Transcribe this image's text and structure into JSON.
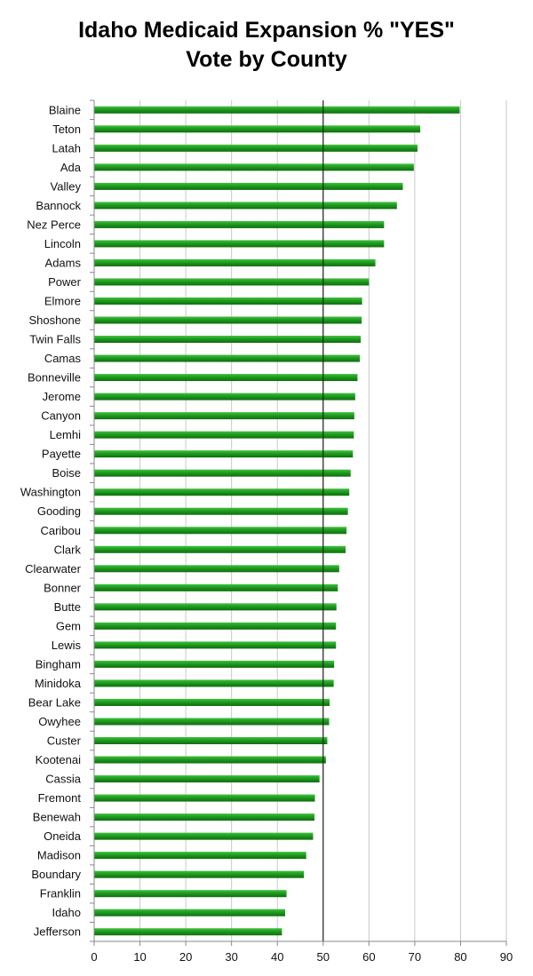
{
  "chart_data": {
    "type": "bar",
    "orientation": "horizontal",
    "title_lines": [
      "Idaho Medicaid Expansion % \"YES\"",
      "Vote by County"
    ],
    "categories": [
      "Blaine",
      "Teton",
      "Latah",
      "Ada",
      "Valley",
      "Bannock",
      "Nez Perce",
      "Lincoln",
      "Adams",
      "Power",
      "Elmore",
      "Shoshone",
      "Twin Falls",
      "Camas",
      "Bonneville",
      "Jerome",
      "Canyon",
      "Lemhi",
      "Payette",
      "Boise",
      "Washington",
      "Gooding",
      "Caribou",
      "Clark",
      "Clearwater",
      "Bonner",
      "Butte",
      "Gem",
      "Lewis",
      "Bingham",
      "Minidoka",
      "Bear Lake",
      "Owyhee",
      "Custer",
      "Kootenai",
      "Cassia",
      "Fremont",
      "Benewah",
      "Oneida",
      "Madison",
      "Boundary",
      "Franklin",
      "Idaho",
      "Jefferson"
    ],
    "values": [
      79.8,
      71.2,
      70.6,
      69.8,
      67.4,
      66.1,
      63.3,
      63.3,
      61.4,
      60.0,
      58.5,
      58.4,
      58.2,
      58.0,
      57.5,
      57.0,
      56.8,
      56.7,
      56.5,
      56.0,
      55.7,
      55.4,
      55.1,
      54.9,
      53.5,
      53.2,
      52.9,
      52.8,
      52.8,
      52.4,
      52.3,
      51.4,
      51.3,
      50.9,
      50.6,
      49.2,
      48.2,
      48.1,
      47.8,
      46.3,
      45.8,
      42.0,
      41.7,
      41.0
    ],
    "xlim": [
      0,
      90
    ],
    "xticks": [
      0,
      10,
      20,
      30,
      40,
      50,
      60,
      70,
      80,
      90
    ],
    "reference_line": 50,
    "grid": true,
    "bar_color": "#1f9a1f",
    "xlabel": "",
    "ylabel": ""
  }
}
